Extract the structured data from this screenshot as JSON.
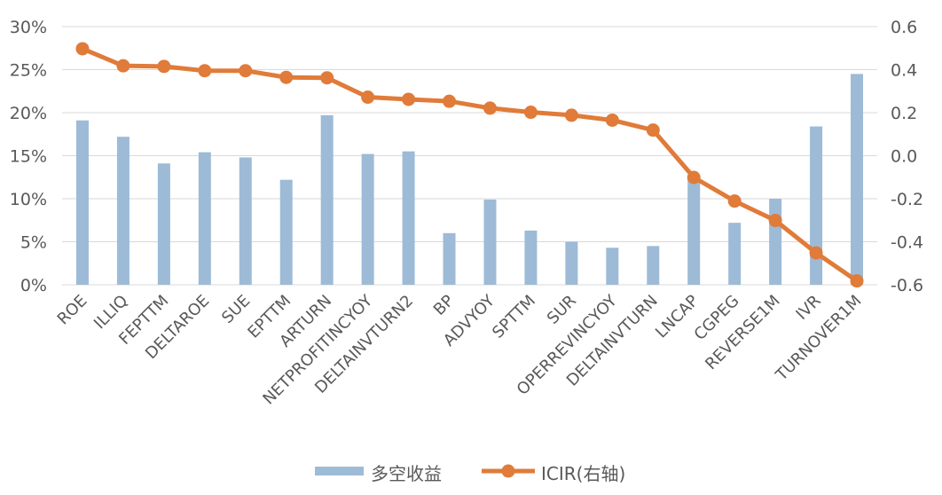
{
  "chart_data": {
    "type": "bar",
    "categories": [
      "ROE",
      "ILLIQ",
      "FEPTTM",
      "DELTAROE",
      "SUE",
      "EPTTM",
      "ARTURN",
      "NETPROFITINCYOY",
      "DELTAINVTURN2",
      "BP",
      "ADVYOY",
      "SPTTM",
      "SUR",
      "OPERREVINCYOY",
      "DELTAINVTURN",
      "LNCAP",
      "CGPEG",
      "REVERSE1M",
      "IVR",
      "TURNOVER1M"
    ],
    "series": [
      {
        "name": "多空收益",
        "type": "bar",
        "axis": "left",
        "color": "#9DBBD6",
        "values": [
          0.191,
          0.172,
          0.141,
          0.154,
          0.148,
          0.122,
          0.197,
          0.152,
          0.155,
          0.06,
          0.099,
          0.063,
          0.05,
          0.043,
          0.045,
          0.124,
          0.072,
          0.1,
          0.184,
          0.245
        ]
      },
      {
        "name": "ICIR(右轴)",
        "type": "line",
        "axis": "right",
        "color": "#E07B39",
        "values": [
          0.497,
          0.418,
          0.415,
          0.395,
          0.395,
          0.364,
          0.362,
          0.272,
          0.262,
          0.253,
          0.221,
          0.202,
          0.188,
          0.165,
          0.119,
          -0.101,
          -0.211,
          -0.301,
          -0.452,
          -0.582
        ]
      }
    ],
    "y_left": {
      "min": 0,
      "max": 0.3,
      "ticks": [
        "0%",
        "5%",
        "10%",
        "15%",
        "20%",
        "25%",
        "30%"
      ]
    },
    "y_right": {
      "min": -0.6,
      "max": 0.6,
      "ticks": [
        "-0.6",
        "-0.4",
        "-0.2",
        "0.0",
        "0.2",
        "0.4",
        "0.6"
      ]
    },
    "grid": true,
    "legend": "bottom"
  }
}
